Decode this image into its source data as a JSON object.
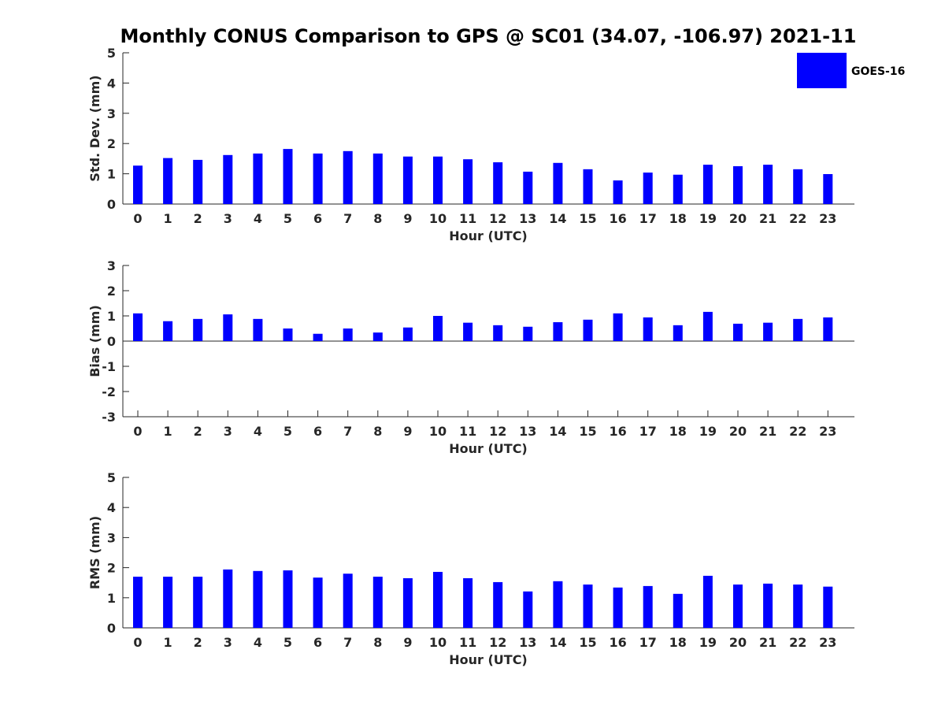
{
  "title": "Monthly CONUS Comparison to GPS @ SC01 (34.07, -106.97) 2021-11",
  "legend": {
    "label": "GOES-16",
    "color": "#0000ff",
    "placement": "top-right"
  },
  "chart_data": [
    {
      "type": "bar",
      "title": "",
      "xlabel": "Hour (UTC)",
      "ylabel": "Std. Dev. (mm)",
      "categories": [
        "0",
        "1",
        "2",
        "3",
        "4",
        "5",
        "6",
        "7",
        "8",
        "9",
        "10",
        "11",
        "12",
        "13",
        "14",
        "15",
        "16",
        "17",
        "18",
        "19",
        "20",
        "21",
        "22",
        "23"
      ],
      "yticks": [
        "0",
        "1",
        "2",
        "3",
        "4",
        "5"
      ],
      "ylim": [
        0,
        5
      ],
      "grid": false,
      "series": [
        {
          "name": "GOES-16",
          "color": "#0000ff",
          "values": [
            1.27,
            1.52,
            1.46,
            1.62,
            1.67,
            1.82,
            1.67,
            1.75,
            1.67,
            1.57,
            1.57,
            1.48,
            1.38,
            1.07,
            1.36,
            1.15,
            0.78,
            1.04,
            0.97,
            1.3,
            1.25,
            1.3,
            1.15,
            0.99
          ]
        }
      ]
    },
    {
      "type": "bar",
      "title": "",
      "xlabel": "Hour (UTC)",
      "ylabel": "Bias (mm)",
      "categories": [
        "0",
        "1",
        "2",
        "3",
        "4",
        "5",
        "6",
        "7",
        "8",
        "9",
        "10",
        "11",
        "12",
        "13",
        "14",
        "15",
        "16",
        "17",
        "18",
        "19",
        "20",
        "21",
        "22",
        "23"
      ],
      "yticks": [
        "-3",
        "-2",
        "-1",
        "0",
        "1",
        "2",
        "3"
      ],
      "ylim": [
        -3,
        3
      ],
      "grid": false,
      "series": [
        {
          "name": "GOES-16",
          "color": "#0000ff",
          "values": [
            1.1,
            0.79,
            0.88,
            1.06,
            0.88,
            0.5,
            0.29,
            0.5,
            0.34,
            0.54,
            1.0,
            0.73,
            0.63,
            0.57,
            0.75,
            0.85,
            1.1,
            0.94,
            0.63,
            1.16,
            0.69,
            0.73,
            0.88,
            0.94
          ]
        }
      ]
    },
    {
      "type": "bar",
      "title": "",
      "xlabel": "Hour (UTC)",
      "ylabel": "RMS (mm)",
      "categories": [
        "0",
        "1",
        "2",
        "3",
        "4",
        "5",
        "6",
        "7",
        "8",
        "9",
        "10",
        "11",
        "12",
        "13",
        "14",
        "15",
        "16",
        "17",
        "18",
        "19",
        "20",
        "21",
        "22",
        "23"
      ],
      "yticks": [
        "0",
        "1",
        "2",
        "3",
        "4",
        "5"
      ],
      "ylim": [
        0,
        5
      ],
      "grid": false,
      "series": [
        {
          "name": "GOES-16",
          "color": "#0000ff",
          "values": [
            1.7,
            1.7,
            1.7,
            1.94,
            1.89,
            1.91,
            1.67,
            1.8,
            1.7,
            1.65,
            1.86,
            1.65,
            1.52,
            1.21,
            1.55,
            1.44,
            1.34,
            1.39,
            1.13,
            1.73,
            1.44,
            1.47,
            1.44,
            1.37
          ]
        }
      ]
    }
  ]
}
